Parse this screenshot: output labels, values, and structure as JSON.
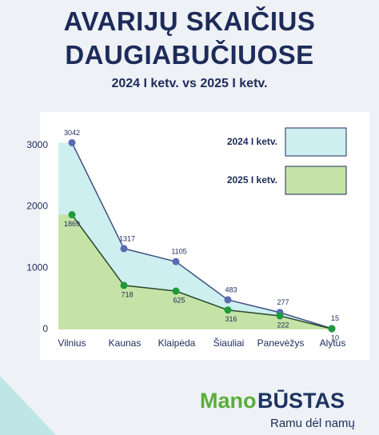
{
  "chart_data": {
    "type": "area",
    "title": "AVARIJŲ SKAIČIUS DAUGIABUČIUOSE",
    "subtitle": "2024 I ketv. vs 2025 I ketv.",
    "categories": [
      "Vilnius",
      "Kaunas",
      "Klaipėda",
      "Šiauliai",
      "Panevėžys",
      "Alytus"
    ],
    "series": [
      {
        "name": "2024 I ketv.",
        "color": "#cdeff0",
        "line_color": "#3f4f80",
        "marker_color": "#5a6bb2",
        "values": [
          3042,
          1317,
          1105,
          483,
          277,
          15
        ]
      },
      {
        "name": "2025 I ketv.",
        "color": "#c5e3a6",
        "line_color": "#2a4a2a",
        "marker_color": "#1f9a3a",
        "values": [
          1869,
          718,
          625,
          316,
          222,
          10
        ]
      }
    ],
    "ylim": [
      0,
      3400
    ],
    "yticks": [
      0,
      1000,
      2000,
      3000
    ],
    "grid": false,
    "legend": "upper right"
  },
  "footer": {
    "logo_first": "Mano",
    "logo_second": "BŪSTAS",
    "slogan": "Ramu dėl namų"
  }
}
